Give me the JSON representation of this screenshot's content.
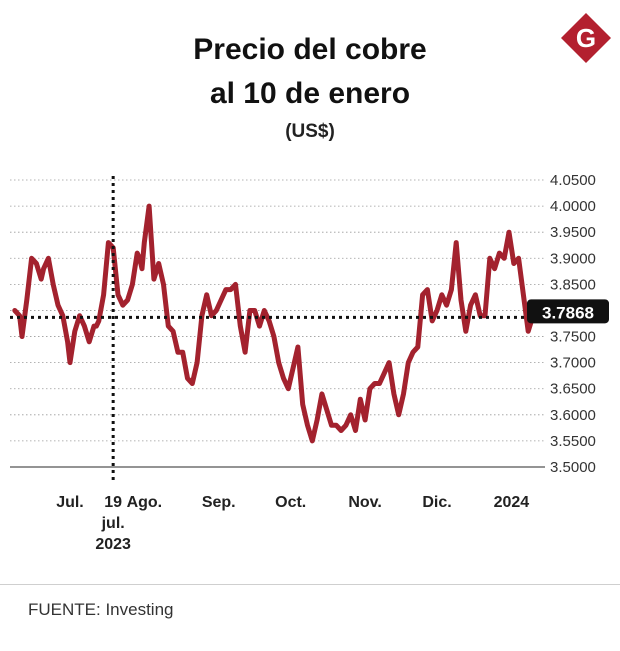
{
  "header": {
    "title_line1": "Precio del cobre",
    "title_line2": "al 10 de enero",
    "unit": "(US$)"
  },
  "logo": {
    "letter": "G",
    "color": "#b3202f"
  },
  "footer": {
    "source": "FUENTE: Investing"
  },
  "chart_data": {
    "type": "line",
    "title": "Precio del cobre al 10 de enero",
    "ylabel": "(US$)",
    "ylim": [
      3.5,
      4.05
    ],
    "yticks": [
      "4.0500",
      "4.0000",
      "3.9500",
      "3.9000",
      "3.8500",
      "3.8000",
      "3.7500",
      "3.7000",
      "3.6500",
      "3.6000",
      "3.5500",
      "3.5000"
    ],
    "xlim": [
      "2023-06-06",
      "2024-01-15"
    ],
    "xticks": [
      {
        "date": "2023-07-01",
        "label": [
          "Jul."
        ]
      },
      {
        "date": "2023-07-19",
        "label": [
          "19",
          "jul.",
          "2023"
        ]
      },
      {
        "date": "2023-08-01",
        "label": [
          "Ago."
        ]
      },
      {
        "date": "2023-09-01",
        "label": [
          "Sep."
        ]
      },
      {
        "date": "2023-10-01",
        "label": [
          "Oct."
        ]
      },
      {
        "date": "2023-11-01",
        "label": [
          "Nov."
        ]
      },
      {
        "date": "2023-12-01",
        "label": [
          "Dic."
        ]
      },
      {
        "date": "2024-01-01",
        "label": [
          "2024"
        ]
      }
    ],
    "grid": true,
    "line_color": "#a3222e",
    "reference": {
      "value": 3.7868,
      "label": "3.7868",
      "marker_date": "2023-07-19"
    },
    "series": [
      {
        "x": [
          "2023-06-08",
          "2023-06-10",
          "2023-06-11",
          "2023-06-13",
          "2023-06-15",
          "2023-06-17",
          "2023-06-19",
          "2023-06-20",
          "2023-06-22",
          "2023-06-24",
          "2023-06-26",
          "2023-06-28",
          "2023-06-30",
          "2023-07-01",
          "2023-07-03",
          "2023-07-05",
          "2023-07-07",
          "2023-07-09",
          "2023-07-11",
          "2023-07-12",
          "2023-07-13",
          "2023-07-15",
          "2023-07-17",
          "2023-07-19",
          "2023-07-21",
          "2023-07-23",
          "2023-07-25",
          "2023-07-27",
          "2023-07-29",
          "2023-07-30",
          "2023-07-31",
          "2023-08-01",
          "2023-08-03",
          "2023-08-05",
          "2023-08-07",
          "2023-08-09",
          "2023-08-11",
          "2023-08-13",
          "2023-08-15",
          "2023-08-17",
          "2023-08-19",
          "2023-08-21",
          "2023-08-23",
          "2023-08-25",
          "2023-08-27",
          "2023-08-29",
          "2023-08-31",
          "2023-09-02",
          "2023-09-04",
          "2023-09-06",
          "2023-09-08",
          "2023-09-10",
          "2023-09-12",
          "2023-09-14",
          "2023-09-16",
          "2023-09-18",
          "2023-09-20",
          "2023-09-22",
          "2023-09-24",
          "2023-09-26",
          "2023-09-28",
          "2023-09-30",
          "2023-10-02",
          "2023-10-04",
          "2023-10-06",
          "2023-10-08",
          "2023-10-10",
          "2023-10-12",
          "2023-10-14",
          "2023-10-16",
          "2023-10-18",
          "2023-10-20",
          "2023-10-22",
          "2023-10-24",
          "2023-10-26",
          "2023-10-28",
          "2023-10-30",
          "2023-11-01",
          "2023-11-03",
          "2023-11-05",
          "2023-11-07",
          "2023-11-09",
          "2023-11-11",
          "2023-11-13",
          "2023-11-15",
          "2023-11-17",
          "2023-11-19",
          "2023-11-21",
          "2023-11-23",
          "2023-11-25",
          "2023-11-27",
          "2023-11-29",
          "2023-12-01",
          "2023-12-03",
          "2023-12-05",
          "2023-12-07",
          "2023-12-09",
          "2023-12-11",
          "2023-12-13",
          "2023-12-15",
          "2023-12-17",
          "2023-12-19",
          "2023-12-21",
          "2023-12-23",
          "2023-12-25",
          "2023-12-27",
          "2023-12-29",
          "2023-12-31",
          "2024-01-02",
          "2024-01-04",
          "2024-01-06",
          "2024-01-08",
          "2024-01-10"
        ],
        "values": [
          3.8,
          3.79,
          3.75,
          3.82,
          3.9,
          3.89,
          3.86,
          3.88,
          3.9,
          3.85,
          3.81,
          3.79,
          3.74,
          3.7,
          3.76,
          3.79,
          3.77,
          3.74,
          3.77,
          3.77,
          3.78,
          3.83,
          3.93,
          3.92,
          3.83,
          3.81,
          3.82,
          3.85,
          3.91,
          3.9,
          3.88,
          3.93,
          4.0,
          3.86,
          3.89,
          3.85,
          3.77,
          3.76,
          3.72,
          3.72,
          3.67,
          3.66,
          3.7,
          3.79,
          3.83,
          3.79,
          3.8,
          3.82,
          3.84,
          3.84,
          3.85,
          3.77,
          3.72,
          3.8,
          3.8,
          3.77,
          3.8,
          3.78,
          3.75,
          3.7,
          3.67,
          3.65,
          3.69,
          3.73,
          3.62,
          3.58,
          3.55,
          3.59,
          3.64,
          3.61,
          3.58,
          3.58,
          3.57,
          3.58,
          3.6,
          3.57,
          3.63,
          3.59,
          3.65,
          3.66,
          3.66,
          3.68,
          3.7,
          3.64,
          3.6,
          3.64,
          3.7,
          3.72,
          3.73,
          3.83,
          3.84,
          3.78,
          3.8,
          3.83,
          3.81,
          3.84,
          3.93,
          3.82,
          3.76,
          3.81,
          3.83,
          3.79,
          3.79,
          3.9,
          3.88,
          3.91,
          3.9,
          3.95,
          3.89,
          3.9,
          3.83,
          3.76,
          3.79
        ]
      }
    ]
  }
}
